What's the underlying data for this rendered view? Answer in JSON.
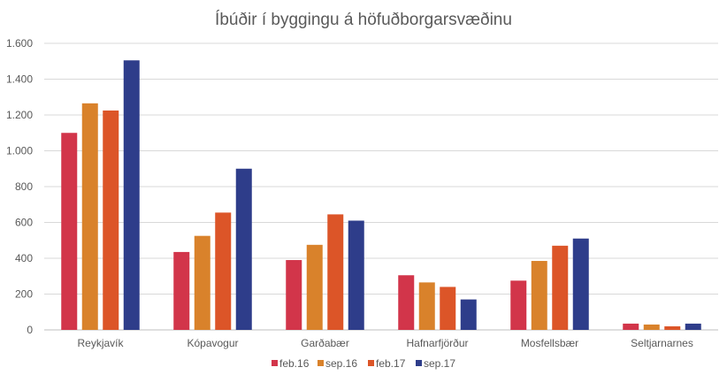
{
  "chart_data": {
    "type": "bar",
    "title": "Íbúðir í byggingu á höfuðborgarsvæðinu",
    "xlabel": "",
    "ylabel": "",
    "ylim": [
      0,
      1600
    ],
    "yticks": [
      0,
      200,
      400,
      600,
      800,
      1000,
      1200,
      1400,
      1600
    ],
    "ytick_labels": [
      "0",
      "200",
      "400",
      "600",
      "800",
      "1.000",
      "1.200",
      "1.400",
      "1.600"
    ],
    "grid": true,
    "legend_position": "bottom",
    "categories": [
      "Reykjavík",
      "Kópavogur",
      "Garðabær",
      "Hafnarfjörður",
      "Mosfellsbær",
      "Seltjarnarnes"
    ],
    "series": [
      {
        "name": "feb.16",
        "color": "#d2354a",
        "values": [
          1100,
          435,
          390,
          305,
          275,
          35
        ]
      },
      {
        "name": "sep.16",
        "color": "#d9822b",
        "values": [
          1265,
          525,
          475,
          265,
          385,
          30
        ]
      },
      {
        "name": "feb.17",
        "color": "#dc5528",
        "values": [
          1225,
          655,
          645,
          240,
          470,
          20
        ]
      },
      {
        "name": "sep.17",
        "color": "#2e3d8a",
        "values": [
          1505,
          900,
          610,
          170,
          510,
          35
        ]
      }
    ]
  }
}
